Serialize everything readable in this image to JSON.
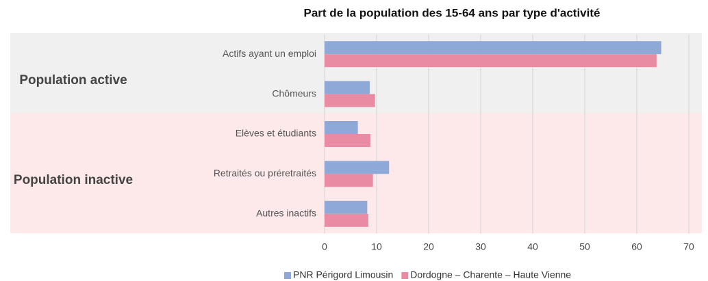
{
  "chart_data": {
    "type": "hbar",
    "title": "Part de la population des 15-64 ans par type d'activité",
    "groups": [
      "Population active",
      "Population inactive"
    ],
    "categories": [
      "Actifs ayant un emploi",
      "Chômeurs",
      "Elèves et étudiants",
      "Retraités ou préretraités",
      "Autres inactifs"
    ],
    "series": [
      {
        "name": "PNR Périgord Limousin",
        "color": "#8ea8d8",
        "values": [
          64.7,
          8.7,
          6.4,
          12.4,
          8.2
        ]
      },
      {
        "name": "Dordogne – Charente – Haute Vienne",
        "color": "#e98ba3",
        "values": [
          63.8,
          9.7,
          8.8,
          9.3,
          8.4
        ]
      }
    ],
    "xlim": [
      0,
      70
    ],
    "xticks": [
      0,
      10,
      20,
      30,
      40,
      50,
      60,
      70
    ],
    "grid": true,
    "legend": "bottom"
  }
}
